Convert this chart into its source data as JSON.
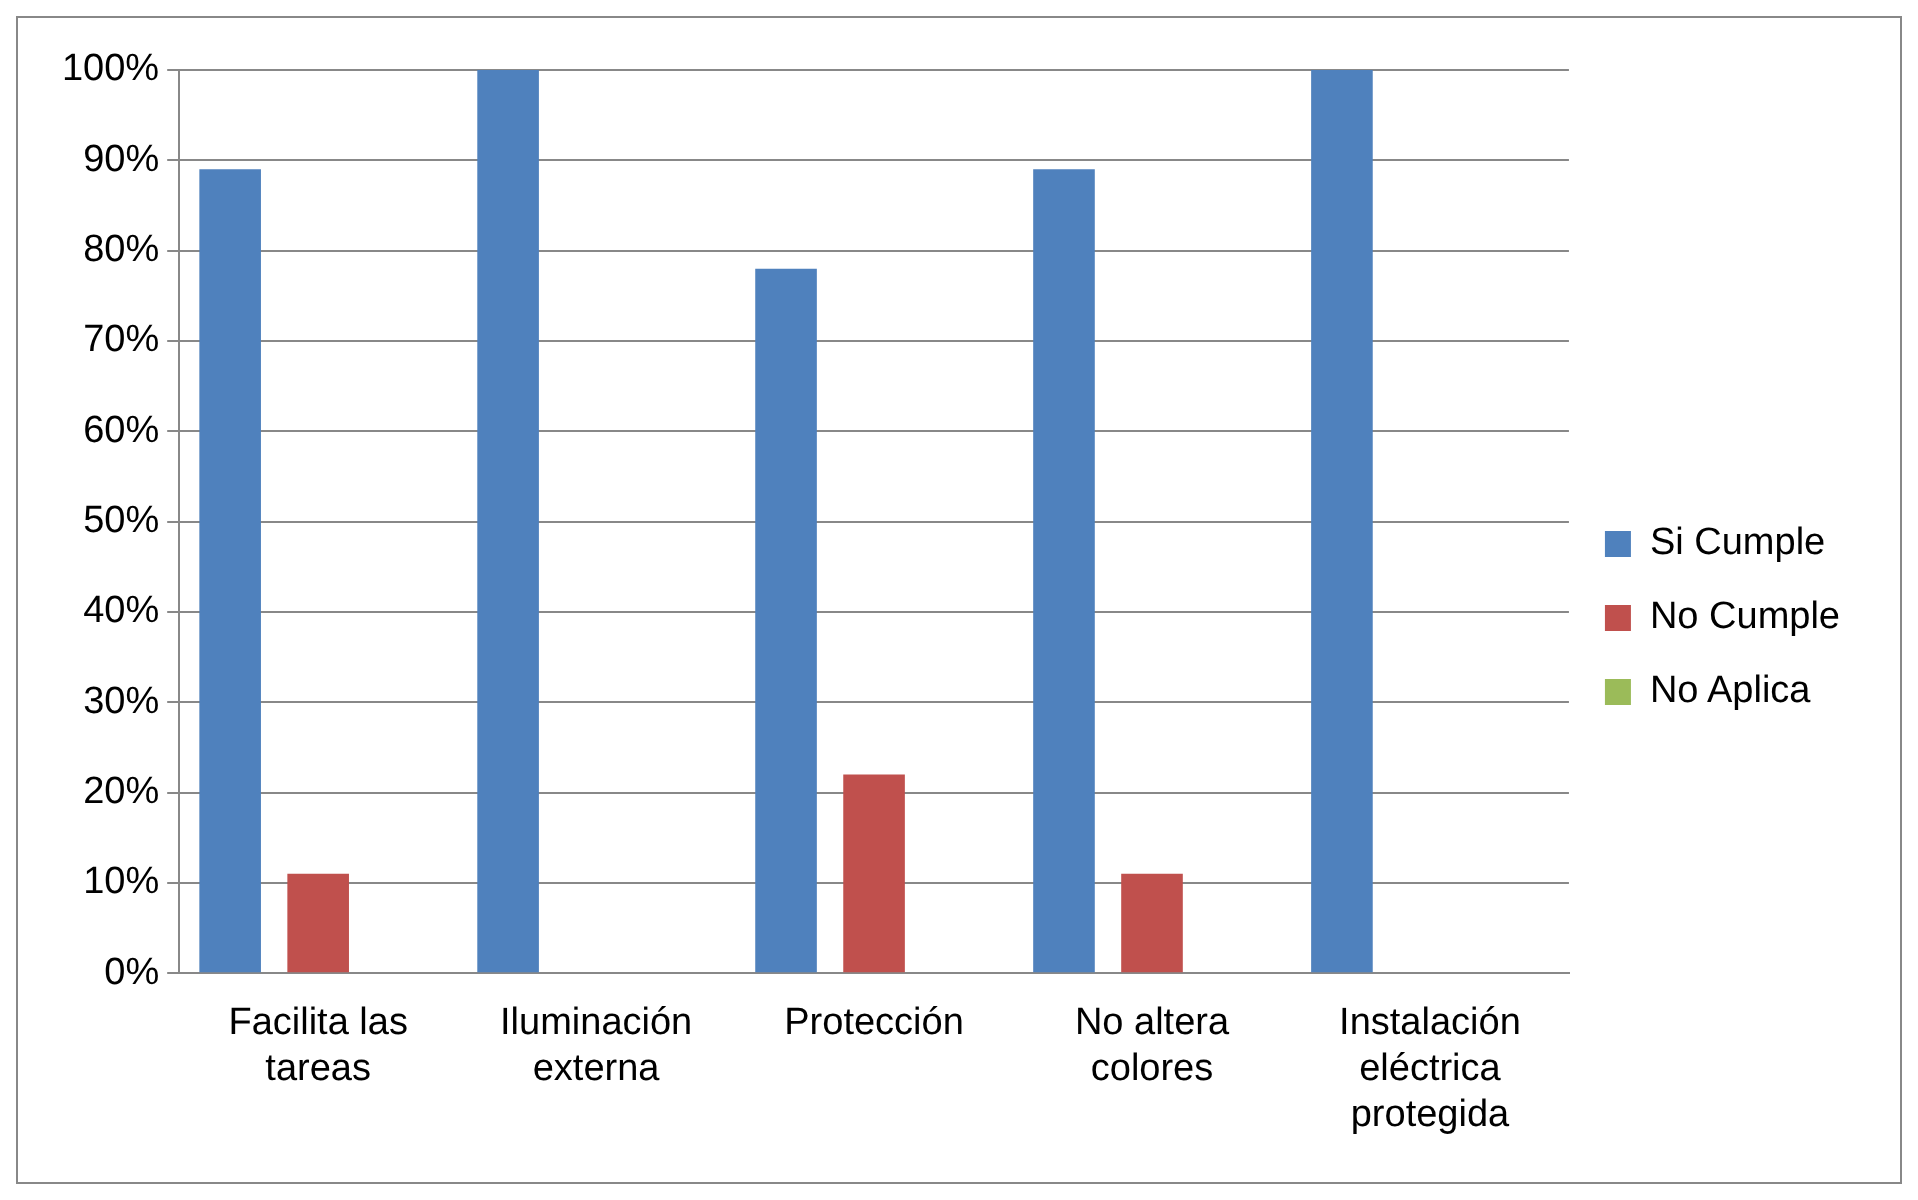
{
  "chart_data": {
    "type": "bar",
    "categories": [
      "Facilita las tareas",
      "Iluminación externa",
      "Protección",
      "No altera colores",
      "Instalación eléctrica protegida"
    ],
    "series": [
      {
        "name": "Si Cumple",
        "color": "#4f81bd",
        "values": [
          89,
          100,
          78,
          89,
          100
        ]
      },
      {
        "name": "No Cumple",
        "color": "#c0504d",
        "values": [
          11,
          0,
          22,
          11,
          0
        ]
      },
      {
        "name": "No Aplica",
        "color": "#9bbb59",
        "values": [
          0,
          0,
          0,
          0,
          0
        ]
      }
    ],
    "ylim": [
      0,
      100
    ],
    "yticks": [
      {
        "value": 0,
        "label": "0%"
      },
      {
        "value": 10,
        "label": "10%"
      },
      {
        "value": 20,
        "label": "20%"
      },
      {
        "value": 30,
        "label": "30%"
      },
      {
        "value": 40,
        "label": "40%"
      },
      {
        "value": 50,
        "label": "50%"
      },
      {
        "value": 60,
        "label": "60%"
      },
      {
        "value": 70,
        "label": "70%"
      },
      {
        "value": 80,
        "label": "80%"
      },
      {
        "value": 90,
        "label": "90%"
      },
      {
        "value": 100,
        "label": "100%"
      }
    ],
    "grid": "y",
    "legend": "right"
  }
}
